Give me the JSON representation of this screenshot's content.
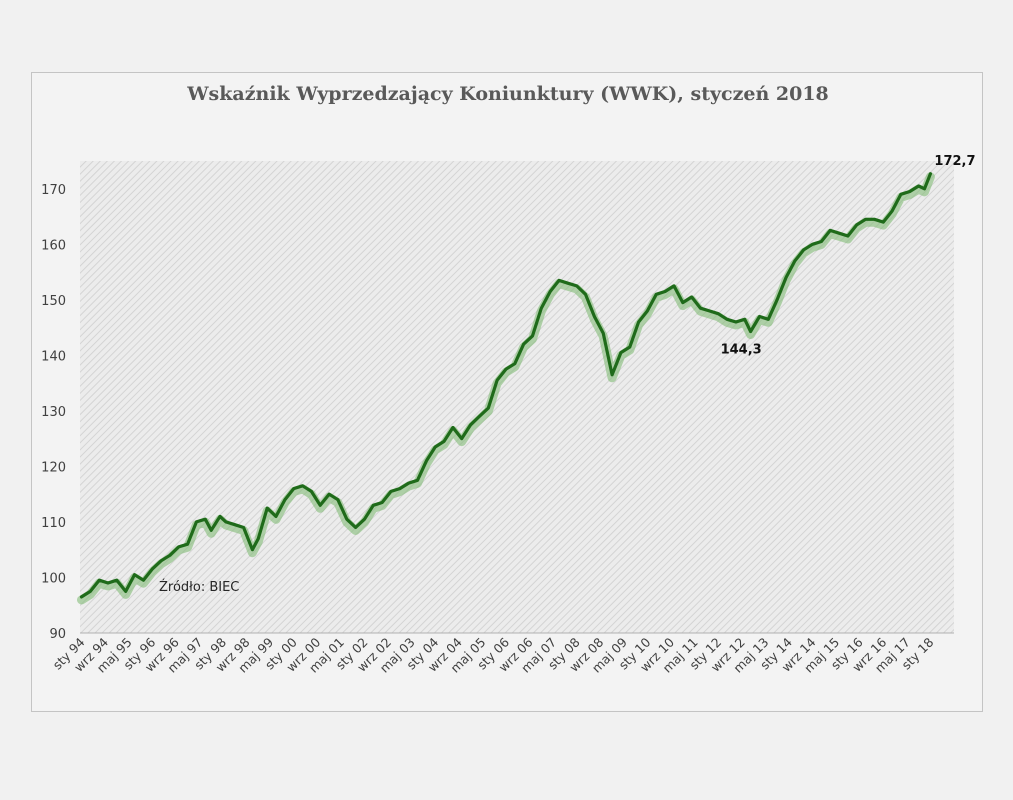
{
  "colors": {
    "line": "#1f6b1a",
    "line_glow": "#7ab86e",
    "plot_hatch": "#d6d6d6",
    "plot_bg": "#ececec"
  },
  "chart_data": {
    "type": "line",
    "title": "Wskaźnik Wyprzedzający Koniunktury (WWK),  styczeń 2018",
    "xlabel": "",
    "ylabel": "",
    "ylim": [
      90,
      175
    ],
    "yticks": [
      "90",
      "100",
      "110",
      "120",
      "130",
      "140",
      "150",
      "160",
      "170"
    ],
    "xtick_labels": [
      "sty 94",
      "wrz 94",
      "maj 95",
      "sty 96",
      "wrz 96",
      "maj 97",
      "sty 98",
      "wrz 98",
      "maj 99",
      "sty 00",
      "wrz 00",
      "maj 01",
      "sty 02",
      "wrz 02",
      "maj 03",
      "sty 04",
      "wrz 04",
      "maj 05",
      "sty 06",
      "wrz 06",
      "maj 07",
      "sty 08",
      "wrz 08",
      "maj 09",
      "sty 10",
      "wrz 10",
      "maj 11",
      "sty 12",
      "wrz 12",
      "maj 13",
      "sty 14",
      "wrz 14",
      "maj 15",
      "sty 16",
      "wrz 16",
      "maj 17",
      "sty 18"
    ],
    "grid": false,
    "legend": "none",
    "source_note": "Źródło: BIEC",
    "annotations": [
      {
        "label": "172,7",
        "date": "2018-01",
        "value": 172.7
      },
      {
        "label": "144,3",
        "date": "2012-12",
        "value": 144.3
      }
    ],
    "series": [
      {
        "points": [
          [
            "1994-01",
            96.5
          ],
          [
            "1994-04",
            97.5
          ],
          [
            "1994-07",
            99.5
          ],
          [
            "1994-10",
            99.0
          ],
          [
            "1995-01",
            99.5
          ],
          [
            "1995-04",
            97.5
          ],
          [
            "1995-07",
            100.5
          ],
          [
            "1995-10",
            99.5
          ],
          [
            "1996-01",
            101.5
          ],
          [
            "1996-04",
            103.0
          ],
          [
            "1996-07",
            104.0
          ],
          [
            "1996-10",
            105.5
          ],
          [
            "1997-01",
            106.0
          ],
          [
            "1997-04",
            110.0
          ],
          [
            "1997-07",
            110.5
          ],
          [
            "1997-09",
            108.5
          ],
          [
            "1997-12",
            111.0
          ],
          [
            "1998-02",
            110.0
          ],
          [
            "1998-05",
            109.5
          ],
          [
            "1998-08",
            109.0
          ],
          [
            "1998-11",
            105.0
          ],
          [
            "1999-01",
            107.0
          ],
          [
            "1999-04",
            112.5
          ],
          [
            "1999-07",
            111.0
          ],
          [
            "1999-10",
            114.0
          ],
          [
            "2000-01",
            116.0
          ],
          [
            "2000-04",
            116.5
          ],
          [
            "2000-07",
            115.5
          ],
          [
            "2000-10",
            113.0
          ],
          [
            "2001-01",
            115.0
          ],
          [
            "2001-04",
            114.0
          ],
          [
            "2001-07",
            110.5
          ],
          [
            "2001-10",
            109.0
          ],
          [
            "2002-01",
            110.5
          ],
          [
            "2002-04",
            113.0
          ],
          [
            "2002-07",
            113.5
          ],
          [
            "2002-10",
            115.5
          ],
          [
            "2003-01",
            116.0
          ],
          [
            "2003-04",
            117.0
          ],
          [
            "2003-07",
            117.5
          ],
          [
            "2003-10",
            121.0
          ],
          [
            "2004-01",
            123.5
          ],
          [
            "2004-04",
            124.5
          ],
          [
            "2004-07",
            127.0
          ],
          [
            "2004-10",
            125.0
          ],
          [
            "2005-01",
            127.5
          ],
          [
            "2005-04",
            129.0
          ],
          [
            "2005-07",
            130.5
          ],
          [
            "2005-10",
            135.5
          ],
          [
            "2006-01",
            137.5
          ],
          [
            "2006-04",
            138.5
          ],
          [
            "2006-07",
            142.0
          ],
          [
            "2006-10",
            143.5
          ],
          [
            "2007-01",
            148.5
          ],
          [
            "2007-04",
            151.5
          ],
          [
            "2007-07",
            153.5
          ],
          [
            "2007-10",
            153.0
          ],
          [
            "2008-01",
            152.5
          ],
          [
            "2008-04",
            151.0
          ],
          [
            "2008-07",
            147.0
          ],
          [
            "2008-10",
            144.0
          ],
          [
            "2009-01",
            136.5
          ],
          [
            "2009-04",
            140.5
          ],
          [
            "2009-07",
            141.5
          ],
          [
            "2009-10",
            146.0
          ],
          [
            "2010-01",
            148.0
          ],
          [
            "2010-04",
            151.0
          ],
          [
            "2010-07",
            151.5
          ],
          [
            "2010-10",
            152.5
          ],
          [
            "2011-01",
            149.5
          ],
          [
            "2011-04",
            150.5
          ],
          [
            "2011-07",
            148.5
          ],
          [
            "2011-10",
            148.0
          ],
          [
            "2012-01",
            147.5
          ],
          [
            "2012-04",
            146.5
          ],
          [
            "2012-07",
            146.0
          ],
          [
            "2012-10",
            146.5
          ],
          [
            "2012-12",
            144.3
          ],
          [
            "2013-03",
            147.0
          ],
          [
            "2013-06",
            146.5
          ],
          [
            "2013-09",
            150.0
          ],
          [
            "2013-12",
            154.0
          ],
          [
            "2014-03",
            157.0
          ],
          [
            "2014-06",
            159.0
          ],
          [
            "2014-09",
            160.0
          ],
          [
            "2014-12",
            160.5
          ],
          [
            "2015-03",
            162.5
          ],
          [
            "2015-06",
            162.0
          ],
          [
            "2015-09",
            161.5
          ],
          [
            "2015-12",
            163.5
          ],
          [
            "2016-03",
            164.5
          ],
          [
            "2016-06",
            164.5
          ],
          [
            "2016-09",
            164.0
          ],
          [
            "2016-12",
            166.0
          ],
          [
            "2017-03",
            169.0
          ],
          [
            "2017-06",
            169.5
          ],
          [
            "2017-09",
            170.5
          ],
          [
            "2017-11",
            170.0
          ],
          [
            "2018-01",
            172.7
          ]
        ]
      }
    ]
  }
}
